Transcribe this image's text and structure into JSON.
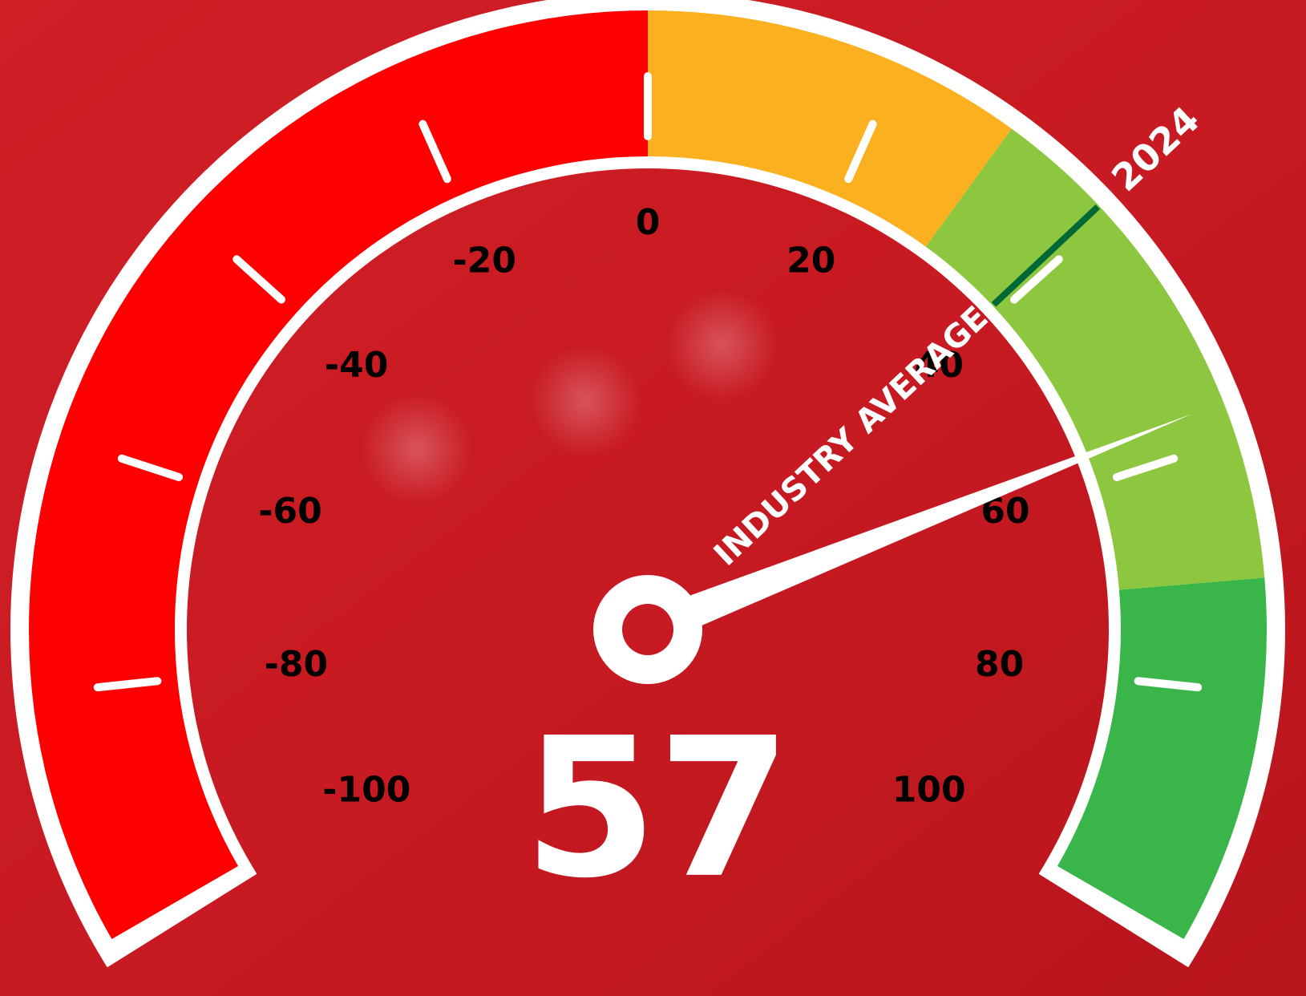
{
  "chart_data": {
    "type": "gauge",
    "value": 57,
    "ylim": [
      -100,
      100
    ],
    "yticks": [
      -100,
      -80,
      -60,
      -40,
      -20,
      0,
      20,
      40,
      60,
      80,
      100
    ],
    "bands": [
      {
        "from": -100,
        "to": 0,
        "color": "#ff0000"
      },
      {
        "from": 0,
        "to": 30,
        "color": "#fbb020"
      },
      {
        "from": 30,
        "to": 71,
        "color": "#8dc63f"
      },
      {
        "from": 71,
        "to": 100,
        "color": "#39b54a"
      }
    ],
    "target": {
      "value": 39,
      "label": "INDUSTRY AVERAGE",
      "year": "2024",
      "color": "#006837"
    }
  }
}
